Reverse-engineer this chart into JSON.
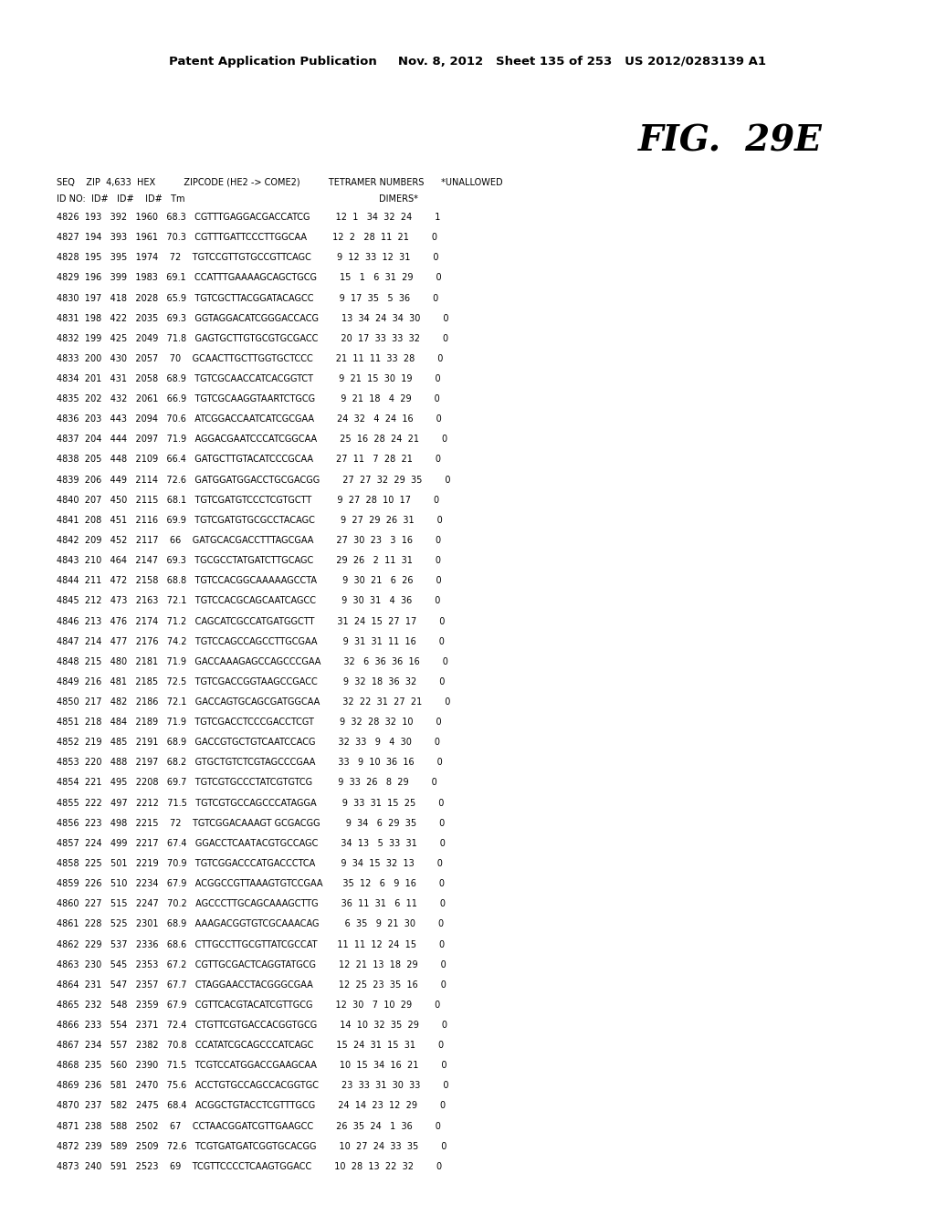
{
  "header_line1": "Patent Application Publication     Nov. 8, 2012   Sheet 135 of 253   US 2012/0283139 A1",
  "fig_label": "FIG.  29E",
  "col_header1": "SEQ    ZIP  4,633  HEX          ZIPCODE (HE2 -> COME2)          TETRAMER NUMBERS      *UNALLOWED",
  "col_header2": "ID NO:  ID#   ID#    ID#   Tm                                                                    DIMERS*",
  "rows": [
    "4826  193   392   1960   68.3   CGTTTGAGGACGACCATCG         12  1   34  32  24        1",
    "4827  194   393   1961   70.3   CGTTTGATTCCCTTGGCAA         12  2   28  11  21        0",
    "4828  195   395   1974    72    TGTCCGTTGTGCCGTTCAGC         9  12  33  12  31        0",
    "4829  196   399   1983   69.1   CCATTTGAAAAGCAGCTGCG        15   1   6  31  29        0",
    "4830  197   418   2028   65.9   TGTCGCTTACGGATACAGCC         9  17  35   5  36        0",
    "4831  198   422   2035   69.3   GGTAGGACATCGGGACCACG        13  34  24  34  30        0",
    "4832  199   425   2049   71.8   GAGTGCTTGTGCGTGCGACC        20  17  33  33  32        0",
    "4833  200   430   2057    70    GCAACTTGCTTGGTGCTCCC        21  11  11  33  28        0",
    "4834  201   431   2058   68.9   TGTCGCAACCATCACGGTCT         9  21  15  30  19        0",
    "4835  202   432   2061   66.9   TGTCGCAAGGTAARTCTGCG         9  21  18   4  29        0",
    "4836  203   443   2094   70.6   ATCGGACCAATCATCGCGAA        24  32   4  24  16        0",
    "4837  204   444   2097   71.9   AGGACGAATCCCATCGGCAA        25  16  28  24  21        0",
    "4838  205   448   2109   66.4   GATGCTTGTACATCCCGCAA        27  11   7  28  21        0",
    "4839  206   449   2114   72.6   GATGGATGGACCTGCGACGG        27  27  32  29  35        0",
    "4840  207   450   2115   68.1   TGTCGATGTCCCTCGTGCTT         9  27  28  10  17        0",
    "4841  208   451   2116   69.9   TGTCGATGTGCGCCTACAGC         9  27  29  26  31        0",
    "4842  209   452   2117    66    GATGCACGACCTTTAGCGAA        27  30  23   3  16        0",
    "4843  210   464   2147   69.3   TGCGCCTATGATCTTGCAGC        29  26   2  11  31        0",
    "4844  211   472   2158   68.8   TGTCCACGGCAAAAAGCCTA         9  30  21   6  26        0",
    "4845  212   473   2163   72.1   TGTCCACGCAGCAATCAGCC         9  30  31   4  36        0",
    "4846  213   476   2174   71.2   CAGCATCGCCATGATGGCTT        31  24  15  27  17        0",
    "4847  214   477   2176   74.2   TGTCCAGCCAGCCTTGCGAA         9  31  31  11  16        0",
    "4848  215   480   2181   71.9   GACCAAAGAGCCAGCCCGAA        32   6  36  36  16        0",
    "4849  216   481   2185   72.5   TGTCGACCGGTAAGCCGACC         9  32  18  36  32        0",
    "4850  217   482   2186   72.1   GACCAGTGCAGCGATGGCAA        32  22  31  27  21        0",
    "4851  218   484   2189   71.9   TGTCGACCTCCCGACCTCGT         9  32  28  32  10        0",
    "4852  219   485   2191   68.9   GACCGTGCTGTCAATCCACG        32  33   9   4  30        0",
    "4853  220   488   2197   68.2   GTGCTGTCTCGTAGCCCGAA        33   9  10  36  16        0",
    "4854  221   495   2208   69.7   TGTCGTGCCCTATCGTGTCG         9  33  26   8  29        0",
    "4855  222   497   2212   71.5   TGTCGTGCCAGCCCATAGGА         9  33  31  15  25        0",
    "4856  223   498   2215    72    TGTCGGACAAAGT GCGACGG         9  34   6  29  35        0",
    "4857  224   499   2217   67.4   GGACCTCAAТАСGTGCCAGC        34  13   5  33  31        0",
    "4858  225   501   2219   70.9   TGTCGGACCCATGACCCTCA         9  34  15  32  13        0",
    "4859  226   510   2234   67.9   ACGGCCGTTAAАGTGTCCGAA       35  12   6   9  16        0",
    "4860  227   515   2247   70.2   AGCCCTTGCAGCAAAGCTTG        36  11  31   6  11        0",
    "4861  228   525   2301   68.9   AAAGACGGTGTCGCAAACAG         6  35   9  21  30        0",
    "4862  229   537   2336   68.6   CTTGCCTTGCGTTATCGCCAT       11  11  12  24  15        0",
    "4863  230   545   2353   67.2   CGTTGCGACTCAGGTATGCG        12  21  13  18  29        0",
    "4864  231   547   2357   67.7   CTAGGAACCTACGGGCGAA         12  25  23  35  16        0",
    "4865  232   548   2359   67.9   CGTTCACGTACATCGTTGCG        12  30   7  10  29        0",
    "4866  233   554   2371   72.4   CTGTTCGTGACCACGGTGCG        14  10  32  35  29        0",
    "4867  234   557   2382   70.8   CCATATCGCAGCCCATCAGC        15  24  31  15  31        0",
    "4868  235   560   2390   71.5   TCGTCCATGGACCGAAGCAA        10  15  34  16  21        0",
    "4869  236   581   2470   75.6   ACCTGTGCCAGCCACGGTGC        23  33  31  30  33        0",
    "4870  237   582   2475   68.4   ACGGCTGTACCTCGTTTGCG        24  14  23  12  29        0",
    "4871  238   588   2502    67    CCTAACGGATCGTTGAAGCC        26  35  24   1  36        0",
    "4872  239   589   2509   72.6   TCGTGATGATCGGTGCACGG        10  27  24  33  35        0",
    "4873  240   591   2523    69    TCGTTCCCCTCAAGTGGACC        10  28  13  22  32        0"
  ],
  "bg_color": "#ffffff",
  "text_color": "#000000",
  "font_size": 7.0,
  "header_font_size": 9.5,
  "fig_font_size": 28
}
